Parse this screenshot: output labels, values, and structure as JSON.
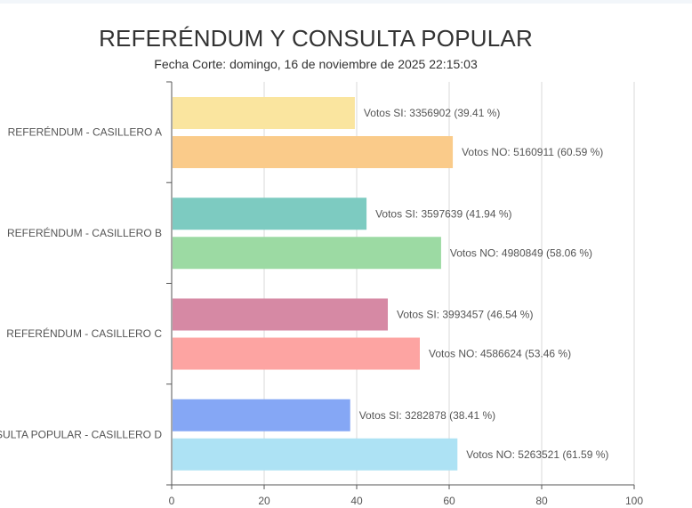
{
  "chart_data": {
    "type": "bar",
    "orientation": "horizontal",
    "title": "REFERÉNDUM Y CONSULTA POPULAR",
    "subtitle": "Fecha Corte: domingo, 16 de noviembre de 2025 22:15:03",
    "categories": [
      "REFERÉNDUM - CASILLERO A",
      "REFERÉNDUM - CASILLERO B",
      "REFERÉNDUM - CASILLERO C",
      "CONSULTA POPULAR - CASILLERO D"
    ],
    "xlim": [
      0,
      100
    ],
    "xticks": [
      0,
      20,
      40,
      60,
      80,
      100
    ],
    "grid": true,
    "legend": "none",
    "bars": [
      {
        "value": 39.41,
        "label": "Votos SI: 3356902 (39.41 %)",
        "color": "#fae59f"
      },
      {
        "value": 60.59,
        "label": "Votos NO: 5160911 (60.59 %)",
        "color": "#facb8a"
      },
      {
        "value": 41.94,
        "label": "Votos SI: 3597639 (41.94 %)",
        "color": "#7dcbc1"
      },
      {
        "value": 58.06,
        "label": "Votos NO: 4980849 (58.06 %)",
        "color": "#9cdaa3"
      },
      {
        "value": 46.54,
        "label": "Votos SI: 3993457 (46.54 %)",
        "color": "#d689a4"
      },
      {
        "value": 53.46,
        "label": "Votos NO: 4586624 (53.46 %)",
        "color": "#fda4a2"
      },
      {
        "value": 38.41,
        "label": "Votos SI: 3282878 (38.41 %)",
        "color": "#85a7f5"
      },
      {
        "value": 61.59,
        "label": "Votos NO: 5263521 (61.59 %)",
        "color": "#ade2f4"
      }
    ]
  }
}
